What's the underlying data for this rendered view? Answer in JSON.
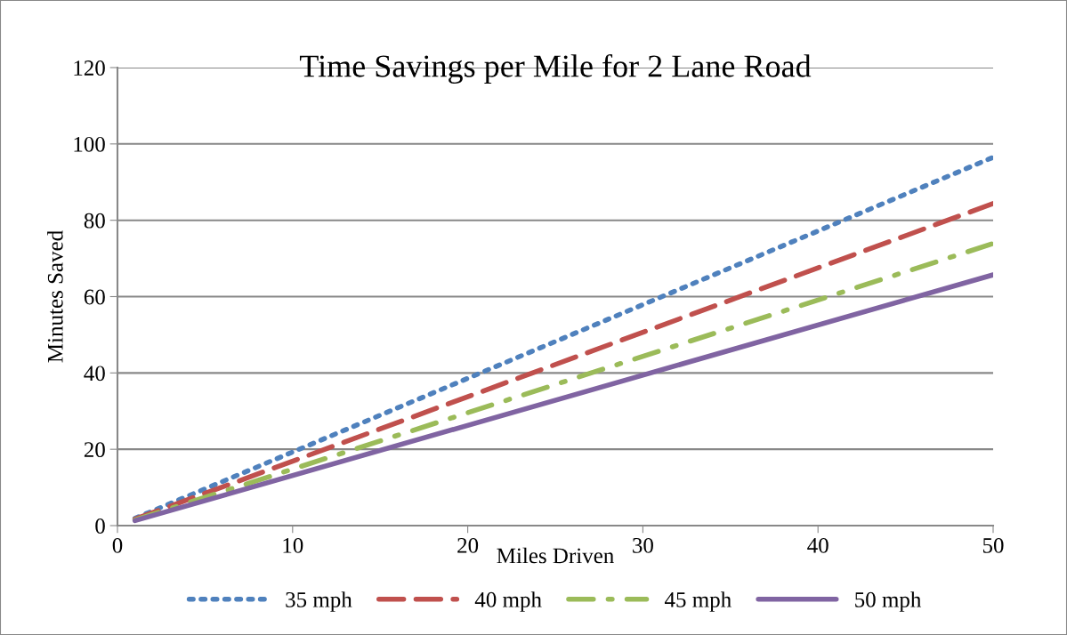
{
  "chart_data": {
    "type": "line",
    "title": "Time Savings per Mile for 2 Lane Road",
    "xlabel": "Miles Driven",
    "ylabel": "Minutes Saved",
    "x": [
      1,
      50
    ],
    "series": [
      {
        "name": "35 mph",
        "color": "#4f81bd",
        "values": [
          1.9,
          96.5
        ],
        "line_style": "dotted"
      },
      {
        "name": "40 mph",
        "color": "#c0504d",
        "values": [
          1.7,
          84.4
        ],
        "line_style": "dashed"
      },
      {
        "name": "45 mph",
        "color": "#9bbb59",
        "values": [
          1.5,
          73.9
        ],
        "line_style": "dashdot"
      },
      {
        "name": "50 mph",
        "color": "#8064a2",
        "values": [
          1.3,
          65.7
        ],
        "line_style": "solid"
      }
    ],
    "xlim": [
      0,
      50
    ],
    "xticks": [
      0,
      10,
      20,
      30,
      40,
      50
    ],
    "ylim": [
      0,
      120
    ],
    "yticks": [
      0,
      20,
      40,
      60,
      80,
      100,
      120
    ],
    "grid": "y",
    "legend": "bottom",
    "marker": "none"
  }
}
